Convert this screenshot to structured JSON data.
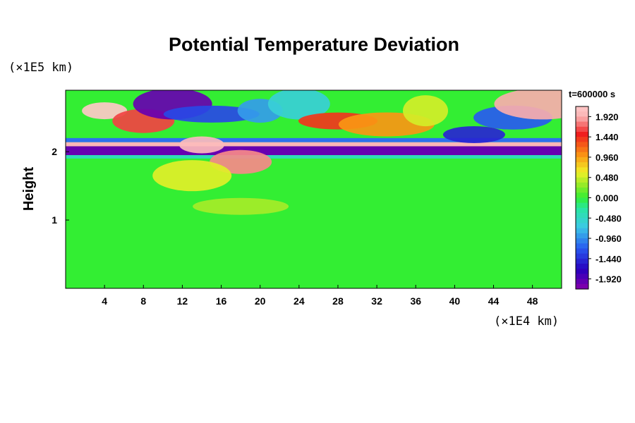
{
  "chart_data": {
    "type": "heatmap",
    "title": "Potential Temperature Deviation",
    "xlabel": "",
    "ylabel": "Height",
    "x_unit": "(×1E4 km)",
    "y_unit": "(×1E5 km)",
    "time_label": "t=600000 s",
    "xlim": [
      0,
      51
    ],
    "ylim": [
      0,
      2.9
    ],
    "x_ticks": [
      4,
      8,
      12,
      16,
      20,
      24,
      28,
      32,
      36,
      40,
      44,
      48
    ],
    "y_ticks": [
      1,
      2
    ],
    "colorbar": {
      "range": [
        -2.16,
        2.16
      ],
      "tick_labels": [
        "1.920",
        "1.440",
        "0.960",
        "0.480",
        "0.000",
        "-0.480",
        "-0.960",
        "-1.440",
        "-1.920"
      ],
      "tick_values": [
        1.92,
        1.44,
        0.96,
        0.48,
        0.0,
        -0.48,
        -0.96,
        -1.44,
        -1.92
      ]
    },
    "features": [
      {
        "x": 4,
        "y": 2.6,
        "value": 2.2
      },
      {
        "x": 8,
        "y": 2.45,
        "value": 1.6
      },
      {
        "x": 11,
        "y": 2.7,
        "value": -2.0
      },
      {
        "x": 15,
        "y": 2.55,
        "value": -1.3
      },
      {
        "x": 20,
        "y": 2.6,
        "value": -0.9
      },
      {
        "x": 24,
        "y": 2.7,
        "value": -0.6
      },
      {
        "x": 28,
        "y": 2.45,
        "value": 1.4
      },
      {
        "x": 33,
        "y": 2.4,
        "value": 1.0
      },
      {
        "x": 37,
        "y": 2.6,
        "value": 0.5
      },
      {
        "x": 42,
        "y": 2.25,
        "value": -1.5
      },
      {
        "x": 46,
        "y": 2.5,
        "value": -1.2
      },
      {
        "x": 49,
        "y": 2.7,
        "value": 1.9
      },
      {
        "x": 14,
        "y": 2.1,
        "value": 2.0
      },
      {
        "x": 18,
        "y": 1.85,
        "value": 1.8
      },
      {
        "x": 13,
        "y": 1.65,
        "value": 0.55
      },
      {
        "x": 18,
        "y": 1.2,
        "value": 0.35
      }
    ]
  }
}
